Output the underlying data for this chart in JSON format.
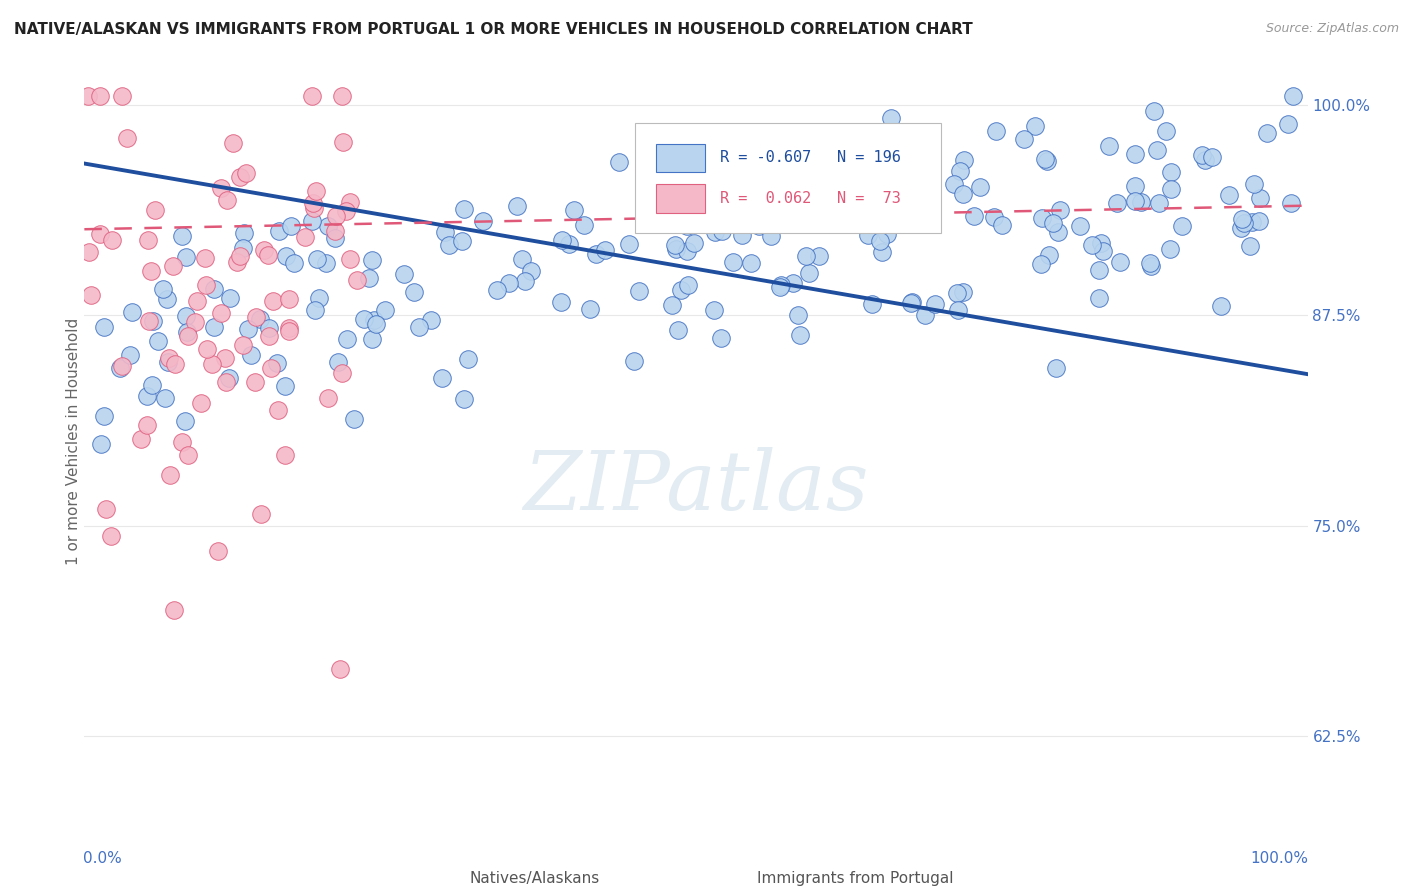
{
  "title": "NATIVE/ALASKAN VS IMMIGRANTS FROM PORTUGAL 1 OR MORE VEHICLES IN HOUSEHOLD CORRELATION CHART",
  "source": "Source: ZipAtlas.com",
  "ylabel": "1 or more Vehicles in Household",
  "blue_color": "#b8d4ee",
  "blue_edge_color": "#4472c4",
  "blue_line_color": "#1f4e9f",
  "pink_color": "#f4b8c8",
  "pink_edge_color": "#e06080",
  "pink_line_color": "#e05878",
  "watermark": "ZIPatlas",
  "watermark_color": "#ccdde8",
  "background_color": "#ffffff",
  "grid_color": "#e8e8e8",
  "ytick_color": "#4472c4",
  "xtick_color": "#4472c4",
  "legend_r_blue": "R = -0.607",
  "legend_n_blue": "N = 196",
  "legend_r_pink": "R =  0.062",
  "legend_n_pink": "N =  73",
  "blue_trend_x0": 0.0,
  "blue_trend_x1": 1.0,
  "blue_trend_y0": 0.965,
  "blue_trend_y1": 0.84,
  "pink_trend_x0": 0.0,
  "pink_trend_x1": 1.0,
  "pink_trend_y0": 0.926,
  "pink_trend_y1": 0.94,
  "ylim_min": 0.575,
  "ylim_max": 1.025,
  "xlim_min": 0.0,
  "xlim_max": 1.0
}
